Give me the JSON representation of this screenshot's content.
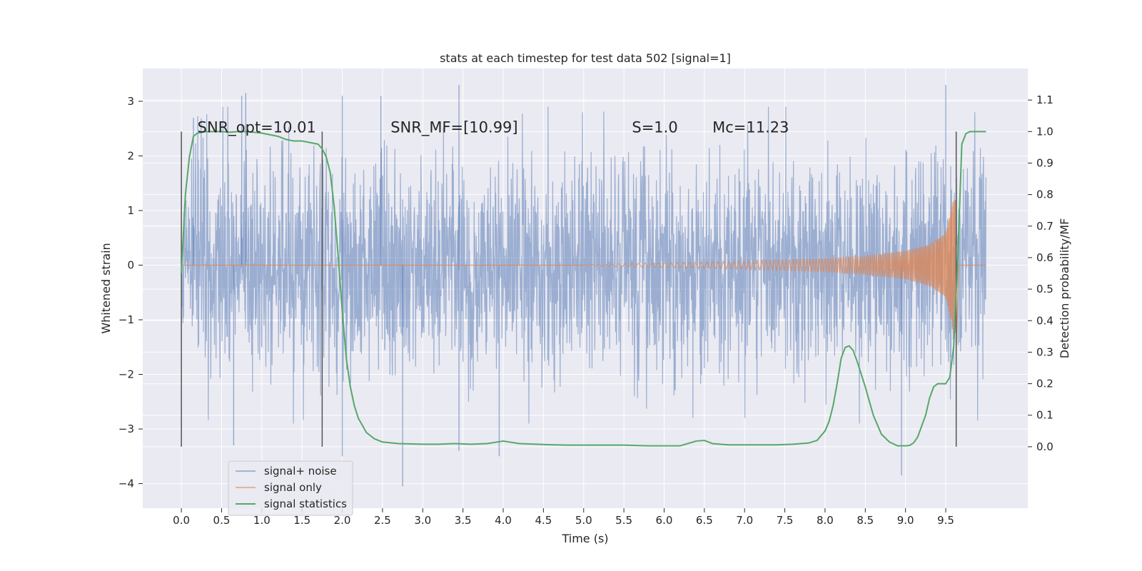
{
  "chart_data": {
    "type": "line",
    "title": "stats at each timestep for test data 502 [signal=1]",
    "xlabel": "Time (s)",
    "ylabel": "Whitened strain",
    "y2label": "Detection probability/MF",
    "xlim": [
      -0.48,
      10.52
    ],
    "ylim": [
      -4.45,
      3.6
    ],
    "y2lim": [
      -0.195,
      1.2
    ],
    "xticks": [
      0.0,
      0.5,
      1.0,
      1.5,
      2.0,
      2.5,
      3.0,
      3.5,
      4.0,
      4.5,
      5.0,
      5.5,
      6.0,
      6.5,
      7.0,
      7.5,
      8.0,
      8.5,
      9.0,
      9.5
    ],
    "xtick_labels": [
      "0.0",
      "0.5",
      "1.0",
      "1.5",
      "2.0",
      "2.5",
      "3.0",
      "3.5",
      "4.0",
      "4.5",
      "5.0",
      "5.5",
      "6.0",
      "6.5",
      "7.0",
      "7.5",
      "8.0",
      "8.5",
      "9.0",
      "9.5"
    ],
    "yticks": [
      3,
      2,
      1,
      0,
      -1,
      -2,
      -3,
      -4
    ],
    "ytick_labels": [
      "3",
      "2",
      "1",
      "0",
      "−1",
      "−2",
      "−3",
      "−4"
    ],
    "y2ticks": [
      1.1,
      1.0,
      0.9,
      0.8,
      0.7,
      0.6,
      0.5,
      0.4,
      0.3,
      0.2,
      0.1,
      0.0
    ],
    "y2tick_labels": [
      "1.1",
      "1.0",
      "0.9",
      "0.8",
      "0.7",
      "0.6",
      "0.5",
      "0.4",
      "0.3",
      "0.2",
      "0.1",
      "0.0"
    ],
    "grid": true,
    "legend_position": "lower-left",
    "colors": {
      "background": "#eaeaf2",
      "grid": "#ffffff",
      "noise": "#4c72b0",
      "signal": "#dd8452",
      "stats": "#55a868",
      "vlines": "#555555"
    },
    "annotations": [
      {
        "id": "snr-opt",
        "text": "SNR_opt=10.01",
        "x": 0.2,
        "y2": 1.0
      },
      {
        "id": "snr-mf",
        "text": "SNR_MF=[10.99]",
        "x": 2.6,
        "y2": 1.0
      },
      {
        "id": "s-value",
        "text": "S=1.0",
        "x": 5.6,
        "y2": 1.0
      },
      {
        "id": "mc-value",
        "text": "Mc=11.23",
        "x": 6.6,
        "y2": 1.0
      }
    ],
    "vlines": [
      0.0,
      1.75,
      9.63
    ],
    "series": [
      {
        "name": "signal+ noise",
        "t_range": [
          0.0,
          10.0
        ],
        "noise_sigma": 1.0,
        "peak_samples": [
          {
            "x": 0.15,
            "y": 2.7
          },
          {
            "x": 0.65,
            "y": -3.3
          },
          {
            "x": 0.75,
            "y": 3.1
          },
          {
            "x": 0.8,
            "y": 3.15
          },
          {
            "x": 2.0,
            "y": 3.1
          },
          {
            "x": 2.0,
            "y": -3.5
          },
          {
            "x": 2.48,
            "y": 3.1
          },
          {
            "x": 2.75,
            "y": -4.05
          },
          {
            "x": 3.45,
            "y": 3.3
          },
          {
            "x": 3.45,
            "y": -3.4
          },
          {
            "x": 3.95,
            "y": -3.5
          },
          {
            "x": 8.95,
            "y": -3.85
          },
          {
            "x": 9.5,
            "y": 3.3
          }
        ]
      },
      {
        "name": "signal only",
        "chirp_start": 5.0,
        "chirp_end": 9.63,
        "amplitudes": [
          {
            "x": 5.0,
            "y": 0.01
          },
          {
            "x": 6.0,
            "y": 0.04
          },
          {
            "x": 7.0,
            "y": 0.08
          },
          {
            "x": 8.0,
            "y": 0.12
          },
          {
            "x": 8.5,
            "y": 0.17
          },
          {
            "x": 9.0,
            "y": 0.26
          },
          {
            "x": 9.3,
            "y": 0.38
          },
          {
            "x": 9.5,
            "y": 0.6
          },
          {
            "x": 9.6,
            "y": 1.25
          }
        ],
        "ringdown_min": -1.65
      },
      {
        "name": "signal statistics",
        "axis": "right",
        "x": [
          0.0,
          0.05,
          0.1,
          0.15,
          0.2,
          0.3,
          0.4,
          0.5,
          0.6,
          0.7,
          0.8,
          0.9,
          1.0,
          1.1,
          1.2,
          1.3,
          1.4,
          1.5,
          1.6,
          1.7,
          1.75,
          1.8,
          1.85,
          1.9,
          1.95,
          2.0,
          2.05,
          2.1,
          2.15,
          2.2,
          2.3,
          2.4,
          2.5,
          2.7,
          3.0,
          3.2,
          3.4,
          3.6,
          3.8,
          4.0,
          4.2,
          4.5,
          4.8,
          5.0,
          5.2,
          5.5,
          5.8,
          6.0,
          6.2,
          6.4,
          6.5,
          6.6,
          6.8,
          7.0,
          7.2,
          7.4,
          7.6,
          7.8,
          7.9,
          8.0,
          8.05,
          8.1,
          8.15,
          8.2,
          8.25,
          8.3,
          8.35,
          8.4,
          8.5,
          8.6,
          8.7,
          8.8,
          8.9,
          9.0,
          9.05,
          9.1,
          9.15,
          9.2,
          9.25,
          9.3,
          9.35,
          9.4,
          9.45,
          9.5,
          9.55,
          9.6,
          9.65,
          9.7,
          9.75,
          9.8,
          9.9,
          10.0
        ],
        "values": [
          0.55,
          0.8,
          0.92,
          0.985,
          0.995,
          1.0,
          1.0,
          1.0,
          0.998,
          1.0,
          1.0,
          0.998,
          0.995,
          0.99,
          0.985,
          0.975,
          0.97,
          0.97,
          0.965,
          0.96,
          0.945,
          0.92,
          0.87,
          0.76,
          0.6,
          0.43,
          0.28,
          0.19,
          0.13,
          0.09,
          0.045,
          0.025,
          0.015,
          0.01,
          0.008,
          0.008,
          0.01,
          0.008,
          0.01,
          0.018,
          0.01,
          0.007,
          0.005,
          0.005,
          0.005,
          0.005,
          0.003,
          0.003,
          0.003,
          0.018,
          0.02,
          0.01,
          0.006,
          0.006,
          0.006,
          0.006,
          0.008,
          0.012,
          0.02,
          0.05,
          0.08,
          0.13,
          0.2,
          0.28,
          0.315,
          0.32,
          0.305,
          0.27,
          0.19,
          0.1,
          0.04,
          0.015,
          0.003,
          0.003,
          0.004,
          0.012,
          0.03,
          0.065,
          0.1,
          0.155,
          0.19,
          0.2,
          0.2,
          0.2,
          0.22,
          0.32,
          0.6,
          0.96,
          0.993,
          1.0,
          1.0,
          1.0
        ]
      }
    ],
    "legend": [
      "signal+ noise",
      "signal only",
      "signal statistics"
    ]
  }
}
